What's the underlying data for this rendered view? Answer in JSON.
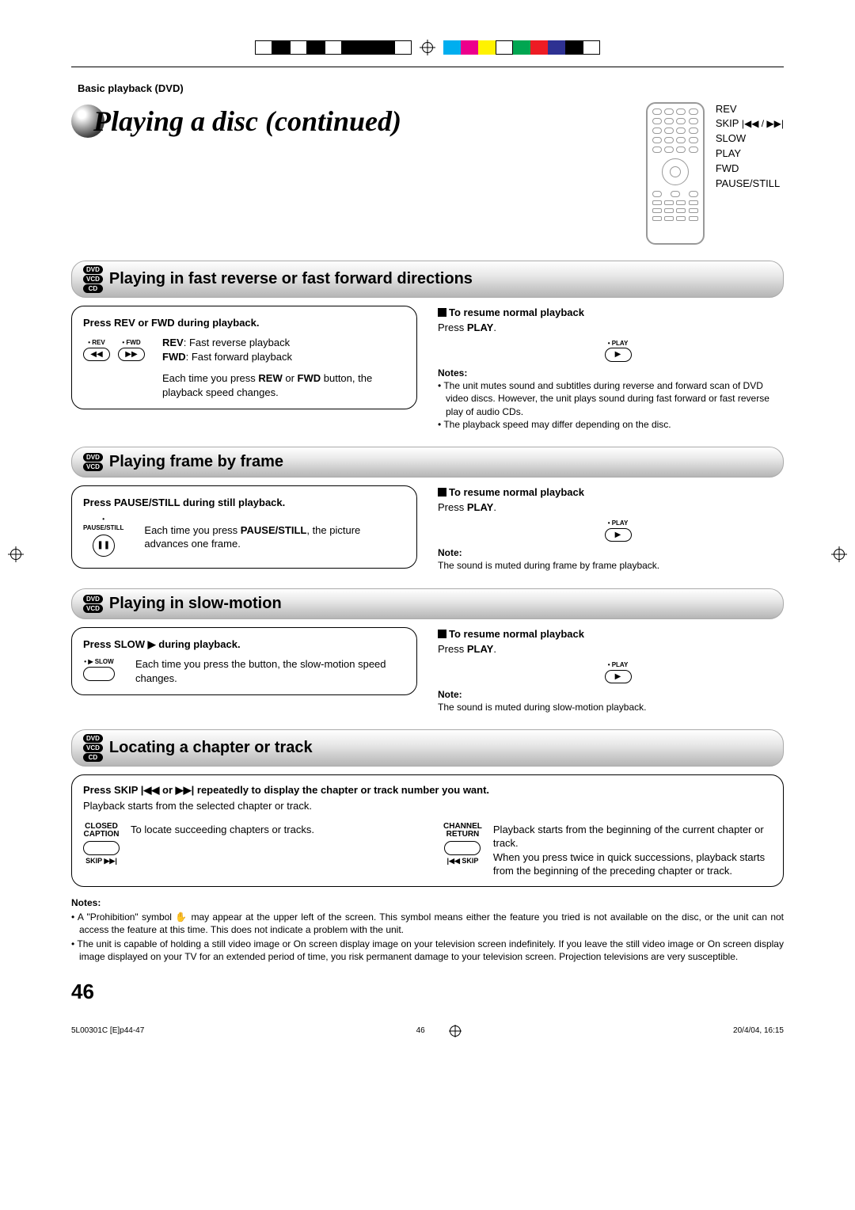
{
  "colors": {
    "text": "#000000",
    "background": "#ffffff",
    "grey_border": "#999999",
    "pill_gradient_light": "#ffffff",
    "pill_gradient_mid": "#e8e8e8",
    "pill_gradient_dark": "#b5b5b5"
  },
  "reg_colors_left": [
    "#ffffff",
    "#000000",
    "#ffffff",
    "#000000",
    "#ffffff",
    "#000000",
    "#000000",
    "#000000",
    "#ffffff"
  ],
  "reg_colors_right": [
    "#00aeef",
    "#ec008c",
    "#fff200",
    "#ffffff",
    "#00a651",
    "#ed1c24",
    "#2e3192",
    "#000000",
    "#ffffff"
  ],
  "breadcrumb": "Basic playback (DVD)",
  "title": "Playing a disc (continued)",
  "remote_labels": [
    "REV",
    "SKIP",
    "SLOW",
    "PLAY",
    "FWD",
    "PAUSE/STILL"
  ],
  "skip_icons": "|◀◀ / ▶▶|",
  "sections": {
    "s1": {
      "badges": [
        "DVD",
        "VCD",
        "CD"
      ],
      "title": "Playing in fast reverse or fast forward directions",
      "box_title": "Press REV or FWD during playback.",
      "btn_rev_label": "• REV",
      "btn_rev_sym": "◀◀",
      "btn_fwd_label": "• FWD",
      "btn_fwd_sym": "▶▶",
      "rev_desc_label": "REV",
      "rev_desc": ": Fast reverse playback",
      "fwd_desc_label": "FWD",
      "fwd_desc": ": Fast forward playback",
      "each_a": "Each time you press ",
      "each_b": "REW",
      "each_c": " or ",
      "each_d": "FWD",
      "each_e": " button, the playback speed changes.",
      "resume_title": "To resume normal playback",
      "resume_a": "Press ",
      "resume_b": "PLAY",
      "resume_c": ".",
      "play_cap": "• PLAY",
      "play_sym": "▶",
      "notes_label": "Notes:",
      "note1": "The unit mutes sound and subtitles during reverse and forward scan of DVD video discs. However, the unit plays sound during fast forward or fast reverse play of audio CDs.",
      "note2": "The playback speed may differ depending on the disc."
    },
    "s2": {
      "badges": [
        "DVD",
        "VCD"
      ],
      "title": "Playing frame by frame",
      "box_title": "Press PAUSE/STILL during still playback.",
      "btn_label": "• PAUSE/STILL",
      "btn_sym": "❚❚",
      "each_a": "Each time you press ",
      "each_b": "PAUSE/STILL",
      "each_c": ", the picture advances one frame.",
      "resume_title": "To resume normal playback",
      "resume_a": "Press ",
      "resume_b": "PLAY",
      "resume_c": ".",
      "play_cap": "• PLAY",
      "play_sym": "▶",
      "note_label": "Note:",
      "note1": "The sound is muted during frame by frame playback."
    },
    "s3": {
      "badges": [
        "DVD",
        "VCD"
      ],
      "title": "Playing in slow-motion",
      "box_title_a": "Press SLOW ",
      "box_title_sym": "▶",
      "box_title_b": " during playback.",
      "btn_label": "• ▶ SLOW",
      "each": "Each time you press the button, the slow-motion speed changes.",
      "resume_title": "To resume normal playback",
      "resume_a": "Press ",
      "resume_b": "PLAY",
      "resume_c": ".",
      "play_cap": "• PLAY",
      "play_sym": "▶",
      "note_label": "Note:",
      "note1": "The sound is muted during slow-motion playback."
    },
    "s4": {
      "badges": [
        "DVD",
        "VCD",
        "CD"
      ],
      "title": "Locating a chapter or track",
      "instr_a": "Press SKIP ",
      "instr_b": "|◀◀",
      "instr_c": " or ",
      "instr_d": "▶▶|",
      "instr_e": " repeatedly to display the chapter or track number you want.",
      "sub": "Playback starts from the selected chapter or track.",
      "left_top": "CLOSED",
      "left_top2": "CAPTION",
      "left_under": "SKIP ▶▶|",
      "left_desc": "To locate succeeding chapters or tracks.",
      "right_top": "CHANNEL",
      "right_top2": "RETURN",
      "right_under": "|◀◀ SKIP",
      "right_desc": "Playback starts from the beginning of the current chapter or track.\nWhen you press twice in quick successions, playback starts from the beginning of the preceding chapter or track."
    }
  },
  "final_notes": {
    "label": "Notes:",
    "hand": "✋",
    "n1a": "A \"Prohibition\" symbol ",
    "n1b": " may appear at the upper left of the screen. This symbol means either the feature you tried is not available on the disc, or the unit can not access the feature at this time. This does not indicate a problem with the unit.",
    "n2": "The unit is capable of holding a still video image or On screen display image on your television screen indefinitely. If you leave the still video image or On screen display image displayed on your TV for an extended period of time, you risk permanent damage to your television screen. Projection televisions are very susceptible."
  },
  "page_number": "46",
  "footer_left": "5L00301C [E]p44-47",
  "footer_mid": "46",
  "footer_right": "20/4/04, 16:15"
}
